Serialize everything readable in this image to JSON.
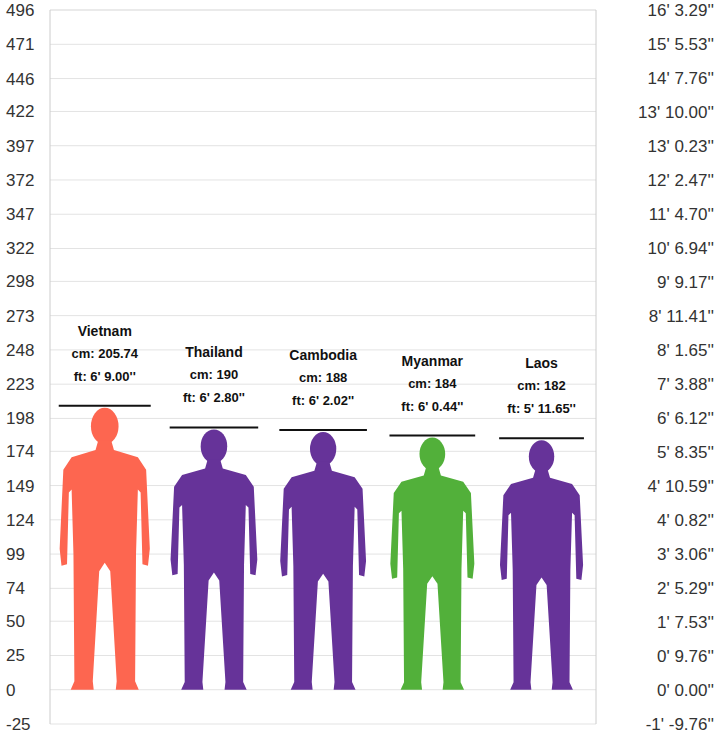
{
  "chart_data": {
    "type": "bar",
    "categories": [
      "Vietnam",
      "Thailand",
      "Cambodia",
      "Myanmar",
      "Laos"
    ],
    "values": [
      205.74,
      190,
      188,
      184,
      182
    ],
    "value_labels": [
      "cm: 205.74",
      "cm: 190",
      "cm: 188",
      "cm: 184",
      "cm: 182"
    ],
    "annotations": [
      "ft: 6' 9.00''",
      "ft: 6' 2.80''",
      "ft: 6' 2.02''",
      "ft: 6' 0.44''",
      "ft: 5' 11.65''"
    ],
    "colors": [
      "#fd6650",
      "#663399",
      "#663399",
      "#52b03a",
      "#663399"
    ],
    "marker": "silhouette",
    "data_labels": true,
    "tick_labels": "y",
    "grid": true,
    "ylim": [
      -25,
      496.04
    ],
    "yticks": [
      -25,
      0,
      25,
      50,
      74,
      99,
      124,
      149,
      174,
      198,
      223,
      248,
      273,
      298,
      322,
      347,
      372,
      397,
      422,
      446,
      471,
      496
    ],
    "y2lim": [
      -25,
      496.04
    ],
    "y2ticks": [
      {
        "value": -24.79,
        "label": "-1' -9.76''"
      },
      {
        "value": 0,
        "label": "0' 0.00''"
      },
      {
        "value": 24.79,
        "label": "0' 9.76''"
      },
      {
        "value": 49.61,
        "label": "1' 7.53''"
      },
      {
        "value": 74.4,
        "label": "2' 5.29''"
      },
      {
        "value": 99.21,
        "label": "3' 3.06''"
      },
      {
        "value": 124.0,
        "label": "4' 0.82''"
      },
      {
        "value": 148.82,
        "label": "4' 10.59''"
      },
      {
        "value": 173.61,
        "label": "5' 8.35''"
      },
      {
        "value": 198.42,
        "label": "6' 6.12''"
      },
      {
        "value": 223.22,
        "label": "7' 3.88''"
      },
      {
        "value": 248.03,
        "label": "8' 1.65''"
      },
      {
        "value": 272.82,
        "label": "8' 11.41''"
      },
      {
        "value": 297.61,
        "label": "9' 9.17''"
      },
      {
        "value": 322.43,
        "label": "10' 6.94''"
      },
      {
        "value": 347.22,
        "label": "11' 4.70''"
      },
      {
        "value": 372.03,
        "label": "12' 2.47''"
      },
      {
        "value": 396.82,
        "label": "13' 0.23''"
      },
      {
        "value": 421.64,
        "label": "13' 10.00''"
      },
      {
        "value": 446.43,
        "label": "14' 7.76''"
      },
      {
        "value": 471.25,
        "label": "15' 5.53''"
      },
      {
        "value": 496.04,
        "label": "16' 3.29''"
      }
    ]
  }
}
